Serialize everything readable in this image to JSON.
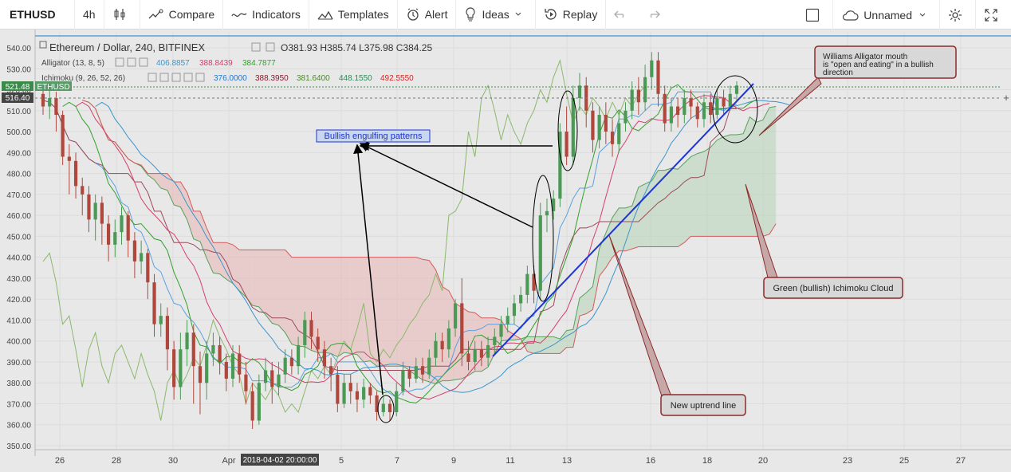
{
  "toolbar": {
    "symbol": "ETHUSD",
    "interval": "4h",
    "compare": "Compare",
    "indicators": "Indicators",
    "templates": "Templates",
    "alert": "Alert",
    "ideas": "Ideas",
    "replay": "Replay",
    "layout_name": "Unnamed"
  },
  "legend": {
    "title": "Ethereum / Dollar, 240, BITFINEX",
    "ohlc": "O381.93  H385.74  L375.98  C384.25",
    "alligator_label": "Alligator (13, 8, 5)",
    "alligator_values": [
      "406.8857",
      "388.8439",
      "384.7877"
    ],
    "ichimoku_label": "Ichimoku (9, 26, 52, 26)",
    "ichimoku_values": [
      "376.0000",
      "388.3950",
      "381.6400",
      "448.1550",
      "492.5550"
    ]
  },
  "price_badges": {
    "last_price": "521.48",
    "symbol_tag": "ETHUSD",
    "crosshair_price": "516.40",
    "crosshair_time": "2018-04-02 20:00:00"
  },
  "annotations": {
    "bullish_engulfing": "Bullish engulfing patterns",
    "alligator_note": [
      "Williams Alligator mouth",
      "is \"open and eating\" in a bullish",
      "direction"
    ],
    "ichimoku_note": "Green (bullish) Ichimoku Cloud",
    "uptrend_note": "New uptrend line"
  },
  "colors": {
    "up": "#4a9a56",
    "down": "#b0473c",
    "alligator_jaw": "#3a95cc",
    "alligator_teeth": "#d4406a",
    "alligator_lips": "#33a02c",
    "cloud_bull": "#b7d4b7",
    "cloud_bear": "#e8b4b4",
    "trendline": "#1b35d6"
  },
  "chart_data": {
    "type": "candlestick",
    "symbol": "ETHUSD",
    "interval": "240",
    "exchange": "BITFINEX",
    "ylim": [
      350,
      545
    ],
    "y_ticks": [
      350,
      360,
      370,
      380,
      390,
      400,
      410,
      420,
      430,
      440,
      450,
      460,
      470,
      480,
      490,
      500,
      510,
      520,
      530,
      540
    ],
    "x_tick_labels": [
      "26",
      "28",
      "30",
      "Apr",
      "5",
      "7",
      "9",
      "11",
      "13",
      "16",
      "18",
      "20",
      "23",
      "25",
      "27"
    ],
    "candles": [
      {
        "o": 518,
        "c": 512,
        "h": 522,
        "l": 508
      },
      {
        "o": 512,
        "c": 516,
        "h": 520,
        "l": 506
      },
      {
        "o": 516,
        "c": 508,
        "h": 519,
        "l": 500
      },
      {
        "o": 508,
        "c": 488,
        "h": 510,
        "l": 484
      },
      {
        "o": 488,
        "c": 486,
        "h": 494,
        "l": 470
      },
      {
        "o": 486,
        "c": 474,
        "h": 490,
        "l": 468
      },
      {
        "o": 474,
        "c": 470,
        "h": 478,
        "l": 460
      },
      {
        "o": 470,
        "c": 458,
        "h": 474,
        "l": 452
      },
      {
        "o": 458,
        "c": 466,
        "h": 470,
        "l": 448
      },
      {
        "o": 466,
        "c": 456,
        "h": 469,
        "l": 446
      },
      {
        "o": 456,
        "c": 446,
        "h": 460,
        "l": 438
      },
      {
        "o": 446,
        "c": 452,
        "h": 458,
        "l": 440
      },
      {
        "o": 452,
        "c": 460,
        "h": 464,
        "l": 446
      },
      {
        "o": 460,
        "c": 448,
        "h": 462,
        "l": 440
      },
      {
        "o": 448,
        "c": 438,
        "h": 452,
        "l": 430
      },
      {
        "o": 438,
        "c": 442,
        "h": 448,
        "l": 432
      },
      {
        "o": 442,
        "c": 428,
        "h": 444,
        "l": 420
      },
      {
        "o": 428,
        "c": 408,
        "h": 432,
        "l": 402
      },
      {
        "o": 408,
        "c": 412,
        "h": 418,
        "l": 402
      },
      {
        "o": 412,
        "c": 396,
        "h": 416,
        "l": 386
      },
      {
        "o": 396,
        "c": 378,
        "h": 400,
        "l": 372
      },
      {
        "o": 378,
        "c": 396,
        "h": 404,
        "l": 372
      },
      {
        "o": 396,
        "c": 404,
        "h": 410,
        "l": 388
      },
      {
        "o": 404,
        "c": 388,
        "h": 408,
        "l": 370
      },
      {
        "o": 388,
        "c": 380,
        "h": 395,
        "l": 365
      },
      {
        "o": 380,
        "c": 394,
        "h": 400,
        "l": 372
      },
      {
        "o": 394,
        "c": 398,
        "h": 404,
        "l": 388
      },
      {
        "o": 398,
        "c": 390,
        "h": 402,
        "l": 384
      },
      {
        "o": 390,
        "c": 382,
        "h": 394,
        "l": 376
      },
      {
        "o": 382,
        "c": 394,
        "h": 398,
        "l": 378
      },
      {
        "o": 394,
        "c": 384,
        "h": 398,
        "l": 380
      },
      {
        "o": 384,
        "c": 376,
        "h": 390,
        "l": 370
      },
      {
        "o": 376,
        "c": 362,
        "h": 380,
        "l": 358
      },
      {
        "o": 362,
        "c": 380,
        "h": 384,
        "l": 360
      },
      {
        "o": 380,
        "c": 386,
        "h": 392,
        "l": 376
      },
      {
        "o": 386,
        "c": 378,
        "h": 390,
        "l": 370
      },
      {
        "o": 378,
        "c": 384,
        "h": 390,
        "l": 374
      },
      {
        "o": 384,
        "c": 392,
        "h": 396,
        "l": 380
      },
      {
        "o": 392,
        "c": 388,
        "h": 396,
        "l": 384
      },
      {
        "o": 388,
        "c": 398,
        "h": 402,
        "l": 384
      },
      {
        "o": 398,
        "c": 410,
        "h": 414,
        "l": 392
      },
      {
        "o": 410,
        "c": 402,
        "h": 414,
        "l": 396
      },
      {
        "o": 402,
        "c": 396,
        "h": 406,
        "l": 390
      },
      {
        "o": 396,
        "c": 388,
        "h": 400,
        "l": 382
      },
      {
        "o": 388,
        "c": 384,
        "h": 392,
        "l": 376
      },
      {
        "o": 384,
        "c": 370,
        "h": 388,
        "l": 366
      },
      {
        "o": 370,
        "c": 380,
        "h": 384,
        "l": 368
      },
      {
        "o": 380,
        "c": 376,
        "h": 384,
        "l": 370
      },
      {
        "o": 376,
        "c": 372,
        "h": 380,
        "l": 366
      },
      {
        "o": 372,
        "c": 378,
        "h": 382,
        "l": 368
      },
      {
        "o": 378,
        "c": 374,
        "h": 380,
        "l": 370
      },
      {
        "o": 374,
        "c": 366,
        "h": 376,
        "l": 362
      },
      {
        "o": 366,
        "c": 370,
        "h": 374,
        "l": 364
      },
      {
        "o": 370,
        "c": 366,
        "h": 372,
        "l": 362
      },
      {
        "o": 366,
        "c": 376,
        "h": 380,
        "l": 364
      },
      {
        "o": 376,
        "c": 386,
        "h": 390,
        "l": 374
      },
      {
        "o": 386,
        "c": 382,
        "h": 388,
        "l": 378
      },
      {
        "o": 382,
        "c": 388,
        "h": 392,
        "l": 380
      },
      {
        "o": 388,
        "c": 384,
        "h": 392,
        "l": 380
      },
      {
        "o": 384,
        "c": 392,
        "h": 396,
        "l": 382
      },
      {
        "o": 392,
        "c": 400,
        "h": 404,
        "l": 388
      },
      {
        "o": 400,
        "c": 396,
        "h": 404,
        "l": 390
      },
      {
        "o": 396,
        "c": 406,
        "h": 410,
        "l": 392
      },
      {
        "o": 406,
        "c": 418,
        "h": 420,
        "l": 402
      },
      {
        "o": 418,
        "c": 394,
        "h": 430,
        "l": 388
      },
      {
        "o": 394,
        "c": 390,
        "h": 400,
        "l": 386
      },
      {
        "o": 390,
        "c": 396,
        "h": 400,
        "l": 386
      },
      {
        "o": 396,
        "c": 392,
        "h": 400,
        "l": 388
      },
      {
        "o": 392,
        "c": 398,
        "h": 402,
        "l": 388
      },
      {
        "o": 398,
        "c": 402,
        "h": 406,
        "l": 394
      },
      {
        "o": 402,
        "c": 408,
        "h": 412,
        "l": 398
      },
      {
        "o": 408,
        "c": 412,
        "h": 416,
        "l": 404
      },
      {
        "o": 412,
        "c": 418,
        "h": 422,
        "l": 408
      },
      {
        "o": 418,
        "c": 422,
        "h": 426,
        "l": 414
      },
      {
        "o": 422,
        "c": 432,
        "h": 436,
        "l": 418
      },
      {
        "o": 432,
        "c": 424,
        "h": 436,
        "l": 418
      },
      {
        "o": 424,
        "c": 460,
        "h": 466,
        "l": 420
      },
      {
        "o": 460,
        "c": 462,
        "h": 468,
        "l": 452
      },
      {
        "o": 462,
        "c": 468,
        "h": 472,
        "l": 458
      },
      {
        "o": 468,
        "c": 500,
        "h": 504,
        "l": 464
      },
      {
        "o": 500,
        "c": 488,
        "h": 512,
        "l": 484
      },
      {
        "o": 488,
        "c": 516,
        "h": 522,
        "l": 484
      },
      {
        "o": 516,
        "c": 522,
        "h": 528,
        "l": 510
      },
      {
        "o": 522,
        "c": 510,
        "h": 526,
        "l": 502
      },
      {
        "o": 510,
        "c": 496,
        "h": 514,
        "l": 490
      },
      {
        "o": 496,
        "c": 508,
        "h": 512,
        "l": 492
      },
      {
        "o": 508,
        "c": 500,
        "h": 514,
        "l": 494
      },
      {
        "o": 500,
        "c": 494,
        "h": 506,
        "l": 488
      },
      {
        "o": 494,
        "c": 504,
        "h": 510,
        "l": 490
      },
      {
        "o": 504,
        "c": 510,
        "h": 514,
        "l": 500
      },
      {
        "o": 510,
        "c": 520,
        "h": 524,
        "l": 506
      },
      {
        "o": 520,
        "c": 514,
        "h": 526,
        "l": 508
      },
      {
        "o": 514,
        "c": 526,
        "h": 532,
        "l": 510
      },
      {
        "o": 526,
        "c": 534,
        "h": 538,
        "l": 520
      },
      {
        "o": 534,
        "c": 518,
        "h": 538,
        "l": 512
      },
      {
        "o": 518,
        "c": 504,
        "h": 522,
        "l": 500
      },
      {
        "o": 504,
        "c": 512,
        "h": 516,
        "l": 500
      },
      {
        "o": 512,
        "c": 508,
        "h": 516,
        "l": 502
      },
      {
        "o": 508,
        "c": 516,
        "h": 520,
        "l": 504
      },
      {
        "o": 516,
        "c": 512,
        "h": 520,
        "l": 506
      },
      {
        "o": 512,
        "c": 506,
        "h": 514,
        "l": 502
      },
      {
        "o": 506,
        "c": 514,
        "h": 518,
        "l": 502
      },
      {
        "o": 514,
        "c": 508,
        "h": 518,
        "l": 504
      },
      {
        "o": 508,
        "c": 516,
        "h": 520,
        "l": 506
      },
      {
        "o": 516,
        "c": 512,
        "h": 520,
        "l": 508
      },
      {
        "o": 512,
        "c": 518,
        "h": 522,
        "l": 510
      },
      {
        "o": 518,
        "c": 522,
        "h": 524,
        "l": 514
      }
    ]
  }
}
